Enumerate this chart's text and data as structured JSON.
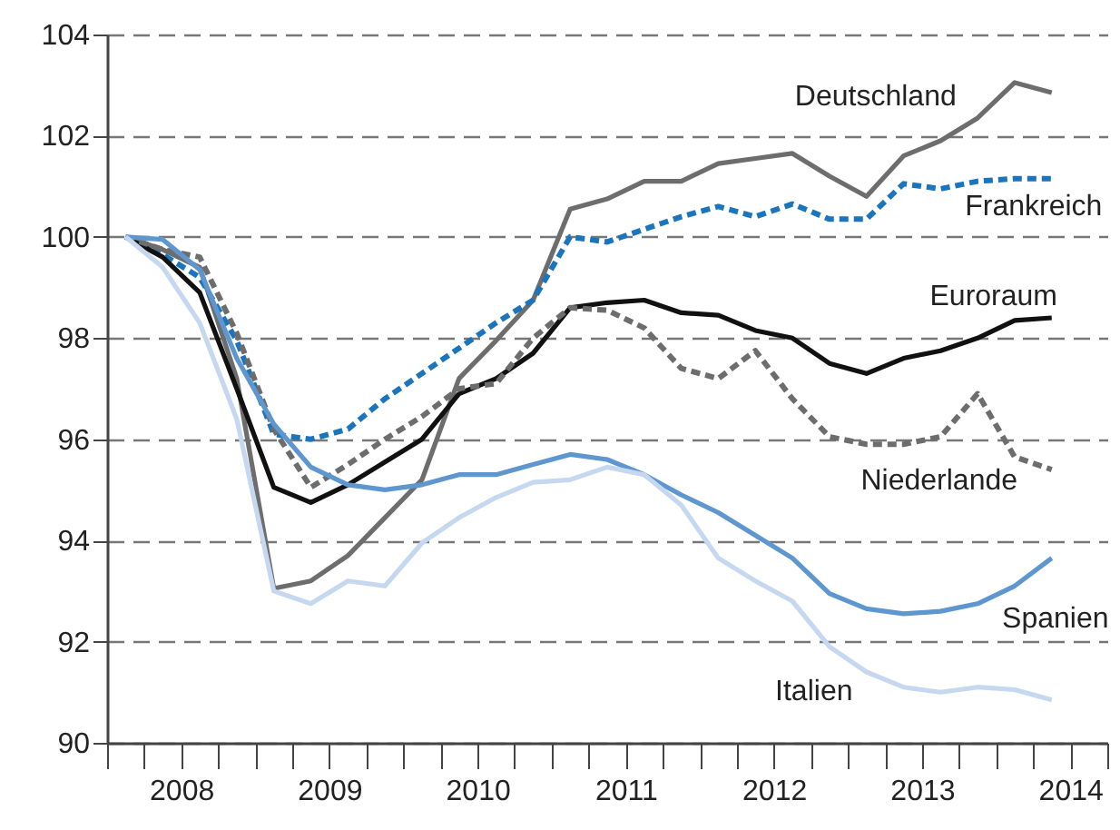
{
  "chart_data": {
    "type": "line",
    "x": [
      2008.125,
      2008.375,
      2008.625,
      2008.875,
      2009.125,
      2009.375,
      2009.625,
      2009.875,
      2010.125,
      2010.375,
      2010.625,
      2010.875,
      2011.125,
      2011.375,
      2011.625,
      2011.875,
      2012.125,
      2012.375,
      2012.625,
      2012.875,
      2013.125,
      2013.375,
      2013.625,
      2013.875,
      2014.125,
      2014.375
    ],
    "xlim": [
      2008,
      2014.75
    ],
    "xticks": [
      {
        "value": 2008,
        "label": null
      },
      {
        "value": 2008.25,
        "label": null
      },
      {
        "value": 2008.5,
        "label": "2008"
      },
      {
        "value": 2008.75,
        "label": null
      },
      {
        "value": 2009,
        "label": null
      },
      {
        "value": 2009.25,
        "label": null
      },
      {
        "value": 2009.5,
        "label": "2009"
      },
      {
        "value": 2009.75,
        "label": null
      },
      {
        "value": 2010,
        "label": null
      },
      {
        "value": 2010.25,
        "label": null
      },
      {
        "value": 2010.5,
        "label": "2010"
      },
      {
        "value": 2010.75,
        "label": null
      },
      {
        "value": 2011,
        "label": null
      },
      {
        "value": 2011.25,
        "label": null
      },
      {
        "value": 2011.5,
        "label": "2011"
      },
      {
        "value": 2011.75,
        "label": null
      },
      {
        "value": 2012,
        "label": null
      },
      {
        "value": 2012.25,
        "label": null
      },
      {
        "value": 2012.5,
        "label": "2012"
      },
      {
        "value": 2012.75,
        "label": null
      },
      {
        "value": 2013,
        "label": null
      },
      {
        "value": 2013.25,
        "label": null
      },
      {
        "value": 2013.5,
        "label": "2013"
      },
      {
        "value": 2013.75,
        "label": null
      },
      {
        "value": 2014,
        "label": null
      },
      {
        "value": 2014.25,
        "label": null
      },
      {
        "value": 2014.5,
        "label": "2014"
      },
      {
        "value": 2014.75,
        "label": null
      }
    ],
    "ylim": [
      90,
      104
    ],
    "yticks": [
      90,
      92,
      94,
      96,
      98,
      100,
      102,
      104
    ],
    "grid": "y",
    "legend": false,
    "series": [
      {
        "name": "Deutschland",
        "color": "#6d6d6d",
        "line_style": "solid",
        "values": [
          100,
          99.75,
          99.4,
          97.2,
          93.05,
          93.2,
          93.7,
          94.45,
          95.2,
          97.2,
          97.95,
          98.75,
          100.55,
          100.75,
          101.1,
          101.1,
          101.45,
          101.55,
          101.65,
          101.2,
          100.8,
          101.6,
          101.9,
          102.35,
          103.05,
          102.85
        ]
      },
      {
        "name": "Frankreich",
        "color": "#1a75bc",
        "line_style": "dashed",
        "values": [
          100,
          99.65,
          99.2,
          97.95,
          96.1,
          96.0,
          96.2,
          96.8,
          97.3,
          97.8,
          98.3,
          98.75,
          100.0,
          99.9,
          100.15,
          100.4,
          100.6,
          100.4,
          100.65,
          100.35,
          100.35,
          101.05,
          100.95,
          101.1,
          101.15,
          101.15
        ]
      },
      {
        "name": "Euroraum",
        "color": "#111111",
        "line_style": "solid",
        "values": [
          100,
          99.6,
          98.9,
          97.0,
          95.05,
          94.75,
          95.1,
          95.55,
          96.0,
          96.9,
          97.2,
          97.7,
          98.6,
          98.7,
          98.75,
          98.5,
          98.45,
          98.15,
          98.0,
          97.5,
          97.3,
          97.6,
          97.75,
          98.0,
          98.35,
          98.4
        ]
      },
      {
        "name": "Niederlande",
        "color": "#6d6d6d",
        "line_style": "dashed",
        "values": [
          100,
          99.75,
          99.6,
          98.1,
          96.2,
          95.05,
          95.5,
          96.0,
          96.45,
          97.0,
          97.1,
          98.0,
          98.6,
          98.55,
          98.2,
          97.4,
          97.2,
          97.75,
          96.8,
          96.05,
          95.9,
          95.9,
          96.05,
          96.9,
          95.65,
          95.4
        ]
      },
      {
        "name": "Spanien",
        "color": "#5e97d0",
        "line_style": "solid",
        "values": [
          100,
          99.95,
          99.35,
          97.6,
          96.3,
          95.45,
          95.1,
          95.0,
          95.1,
          95.3,
          95.3,
          95.5,
          95.7,
          95.6,
          95.3,
          94.9,
          94.55,
          94.1,
          93.65,
          92.95,
          92.65,
          92.55,
          92.6,
          92.75,
          93.1,
          93.65
        ]
      },
      {
        "name": "Italien",
        "color": "#c5d8f0",
        "line_style": "solid",
        "values": [
          100,
          99.4,
          98.3,
          96.4,
          93.0,
          92.75,
          93.2,
          93.1,
          93.95,
          94.45,
          94.85,
          95.15,
          95.2,
          95.45,
          95.3,
          94.7,
          93.65,
          93.2,
          92.8,
          91.9,
          91.4,
          91.1,
          91.0,
          91.1,
          91.05,
          90.85
        ]
      }
    ]
  }
}
